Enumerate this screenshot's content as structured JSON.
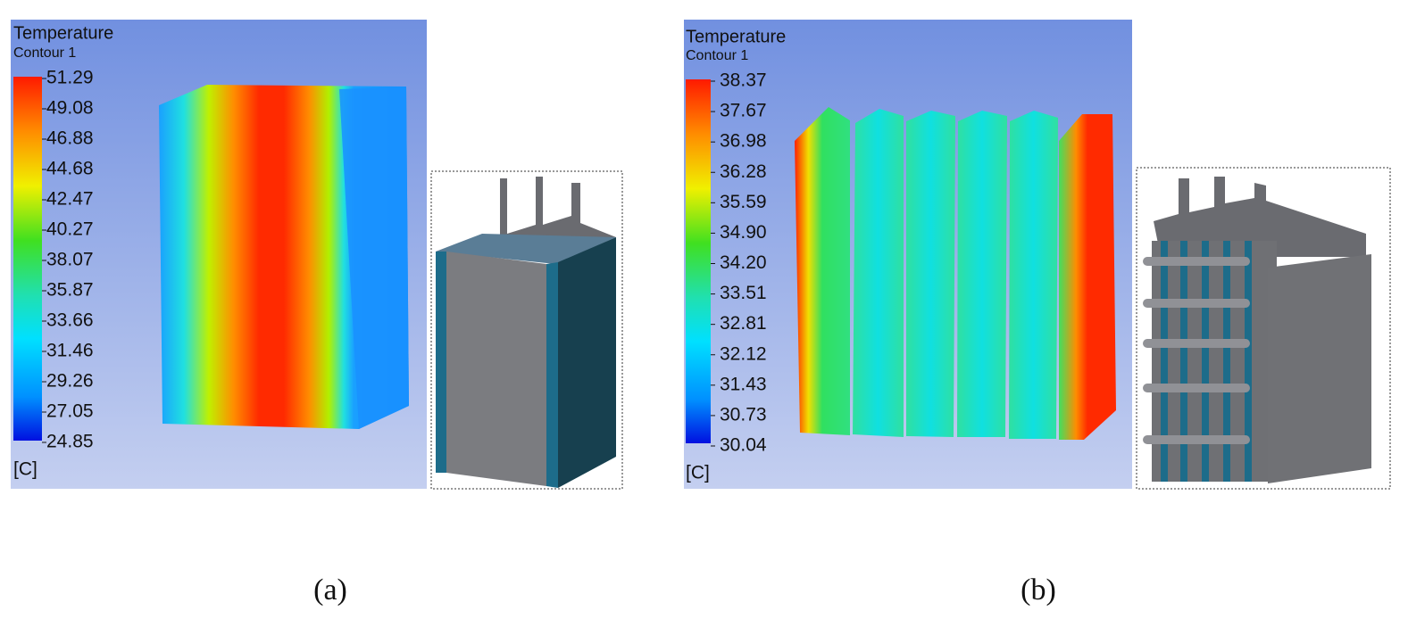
{
  "panels": [
    {
      "legend_title": "Temperature",
      "legend_subtitle": "Contour 1",
      "legend_labels": [
        "51.29",
        "49.08",
        "46.88",
        "44.68",
        "42.47",
        "40.27",
        "38.07",
        "35.87",
        "33.66",
        "31.46",
        "29.26",
        "27.05",
        "24.85"
      ],
      "unit": "[C]",
      "caption": "(a)"
    },
    {
      "legend_title": "Temperature",
      "legend_subtitle": "Contour 1",
      "legend_labels": [
        "38.37",
        "37.67",
        "36.98",
        "36.28",
        "35.59",
        "34.90",
        "34.20",
        "33.51",
        "32.81",
        "32.12",
        "31.43",
        "30.73",
        "30.04"
      ],
      "unit": "[C]",
      "caption": "(b)"
    }
  ]
}
